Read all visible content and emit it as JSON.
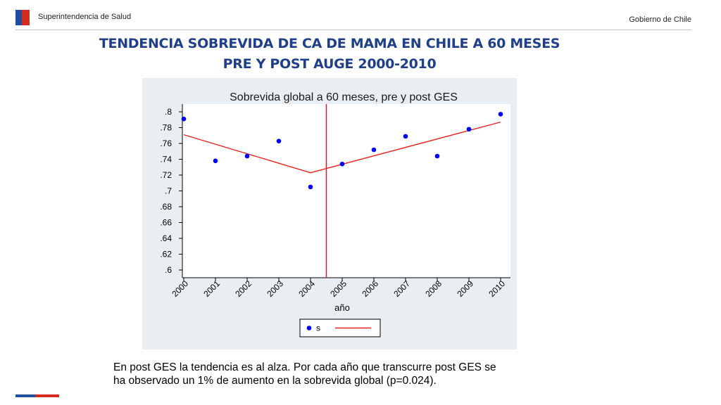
{
  "header": {
    "org_left": "Superintendencia de Salud",
    "org_right": "Gobierno de Chile"
  },
  "slide": {
    "title_line1": "TENDENCIA SOBREVIDA DE CA DE MAMA EN CHILE A 60 MESES",
    "title_line2": "PRE Y POST AUGE 2000-2010",
    "caption_line1": "En post GES la tendencia es al alza. Por cada año que transcurre post GES se",
    "caption_line2": "ha observado un 1% de aumento en la sobrevida global (p=0.024)."
  },
  "colors": {
    "title": "#1f3f8a",
    "plot_bg": "#e9eef2",
    "marker": "#0000ff",
    "fit_line": "#e8211b",
    "vline": "#d0202a",
    "brand_blue": "#1f4ea1",
    "brand_red": "#d52b1e"
  },
  "chart_data": {
    "type": "scatter",
    "title": "Sobrevida global a 60 meses, pre y post GES",
    "xlabel": "año",
    "ylabel": "",
    "x": [
      2000,
      2001,
      2002,
      2003,
      2004,
      2005,
      2006,
      2007,
      2008,
      2009,
      2010
    ],
    "x_tick_labels": [
      "2000",
      "2001",
      "2002",
      "2003",
      "2004",
      "2005",
      "2006",
      "2007",
      "2008",
      "2009",
      "2010"
    ],
    "y_tick_labels": [
      ".8",
      ".78",
      ".76",
      ".74",
      ".72",
      ".7",
      ".68",
      ".66",
      ".64",
      ".62",
      ".6"
    ],
    "xlim": [
      2000,
      2010
    ],
    "ylim": [
      0.6,
      0.8
    ],
    "series": [
      {
        "name": "s",
        "kind": "scatter",
        "values": [
          0.791,
          0.738,
          0.744,
          0.763,
          0.705,
          0.734,
          0.752,
          0.769,
          0.744,
          0.778,
          0.797
        ]
      },
      {
        "name": "",
        "kind": "fitted_line",
        "points": [
          [
            2000,
            0.771
          ],
          [
            2004,
            0.723
          ],
          [
            2010,
            0.787
          ]
        ]
      }
    ],
    "vertical_line_x": 2004.5,
    "grid": false,
    "legend_position": "bottom-center"
  }
}
